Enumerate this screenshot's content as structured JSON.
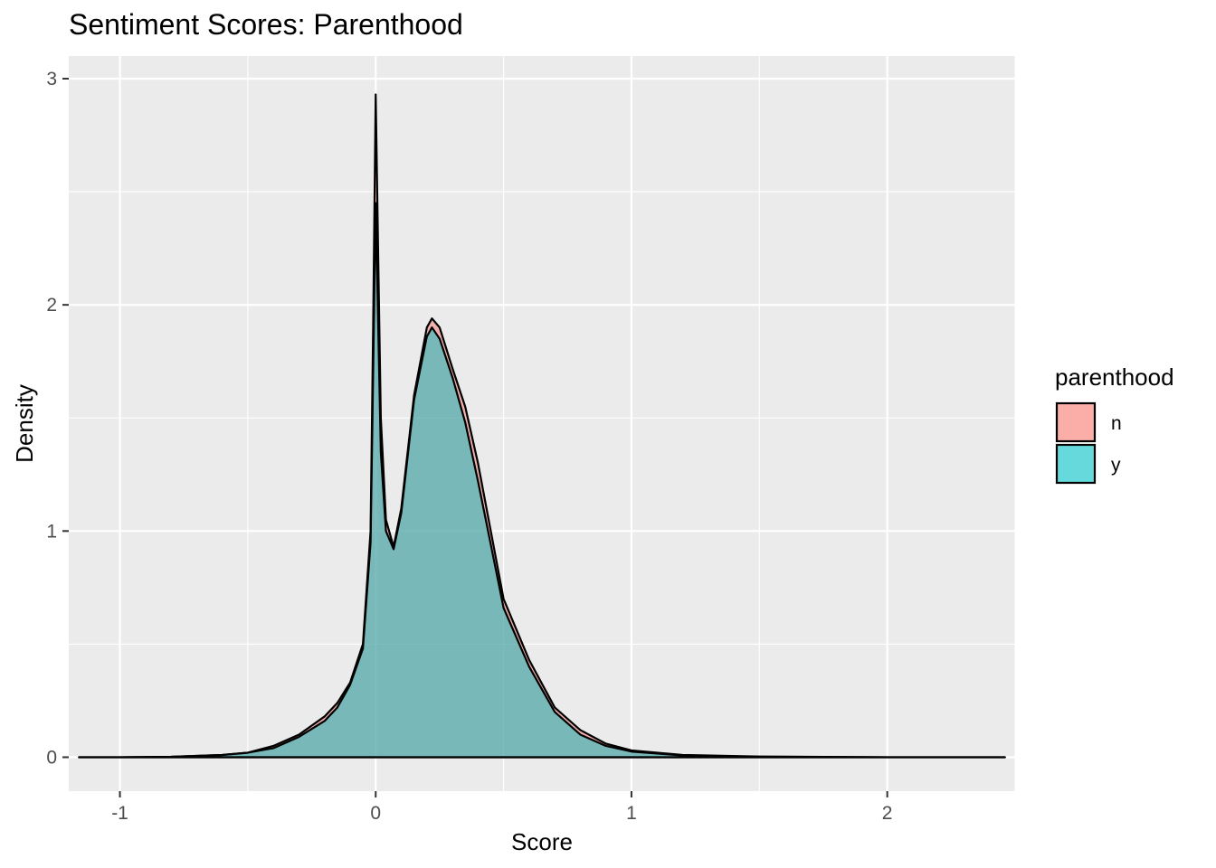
{
  "chart_data": {
    "type": "area",
    "title": "Sentiment Scores: Parenthood",
    "xlabel": "Score",
    "ylabel": "Density",
    "xlim": [
      -1.2,
      2.5
    ],
    "ylim": [
      -0.15,
      3.1
    ],
    "x_ticks": [
      -1,
      0,
      1,
      2
    ],
    "x_tick_labels": [
      "-1",
      "0",
      "1",
      "2"
    ],
    "y_ticks": [
      0,
      1,
      2,
      3
    ],
    "y_tick_labels": [
      "0",
      "1",
      "2",
      "3"
    ],
    "grid": true,
    "legend": {
      "title": "parenthood",
      "position": "right"
    },
    "series": [
      {
        "name": "n",
        "color": "#F8766D",
        "x": [
          -1.16,
          -1.0,
          -0.8,
          -0.6,
          -0.5,
          -0.4,
          -0.3,
          -0.2,
          -0.15,
          -0.1,
          -0.05,
          -0.02,
          -0.01,
          0.0,
          0.01,
          0.02,
          0.04,
          0.07,
          0.1,
          0.15,
          0.2,
          0.22,
          0.25,
          0.3,
          0.35,
          0.4,
          0.5,
          0.6,
          0.7,
          0.8,
          0.9,
          1.0,
          1.2,
          1.5,
          2.0,
          2.46
        ],
        "y": [
          0.0,
          0.0,
          0.002,
          0.01,
          0.02,
          0.05,
          0.1,
          0.18,
          0.24,
          0.33,
          0.5,
          1.0,
          1.9,
          2.93,
          2.2,
          1.5,
          1.05,
          0.93,
          1.1,
          1.6,
          1.9,
          1.94,
          1.9,
          1.72,
          1.55,
          1.3,
          0.7,
          0.43,
          0.22,
          0.12,
          0.06,
          0.03,
          0.01,
          0.003,
          0.0,
          0.0
        ]
      },
      {
        "name": "y",
        "color": "#00BFC4",
        "x": [
          -1.16,
          -1.0,
          -0.8,
          -0.6,
          -0.5,
          -0.4,
          -0.3,
          -0.2,
          -0.15,
          -0.1,
          -0.05,
          -0.02,
          -0.01,
          0.0,
          0.01,
          0.02,
          0.04,
          0.07,
          0.1,
          0.15,
          0.2,
          0.22,
          0.25,
          0.3,
          0.35,
          0.4,
          0.5,
          0.6,
          0.7,
          0.8,
          0.9,
          1.0,
          1.2,
          1.5,
          2.0,
          2.46
        ],
        "y": [
          0.0,
          0.0,
          0.002,
          0.01,
          0.02,
          0.04,
          0.09,
          0.16,
          0.22,
          0.32,
          0.48,
          0.95,
          1.7,
          2.45,
          1.9,
          1.35,
          1.0,
          0.92,
          1.08,
          1.58,
          1.86,
          1.9,
          1.85,
          1.68,
          1.48,
          1.22,
          0.66,
          0.4,
          0.2,
          0.1,
          0.05,
          0.025,
          0.008,
          0.002,
          0.0,
          0.0
        ]
      }
    ]
  }
}
